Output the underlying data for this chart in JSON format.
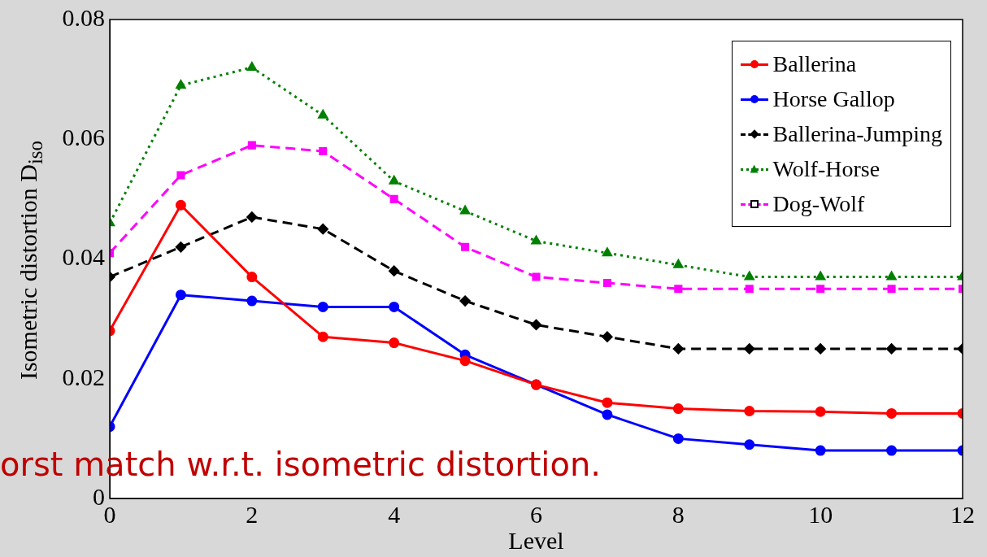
{
  "chart_data": {
    "type": "line",
    "xlabel": "Level",
    "ylabel": "Isometric distortion D$_{iso}$",
    "x": [
      0,
      1,
      2,
      3,
      4,
      5,
      6,
      7,
      8,
      9,
      10,
      11,
      12
    ],
    "xlim": [
      0,
      12
    ],
    "xticks": [
      0,
      2,
      4,
      6,
      8,
      10,
      12
    ],
    "ylim": [
      0,
      0.08
    ],
    "yticks": [
      0,
      0.02,
      0.04,
      0.06,
      0.08
    ],
    "grid": false,
    "legend": "top right",
    "annotations": [
      "orst match w.r.t. isometric distortion."
    ],
    "series": [
      {
        "name": "Ballerina",
        "color": "#ff0000",
        "marker": "circle",
        "line_style": "solid",
        "values": [
          0.028,
          0.049,
          0.037,
          0.027,
          0.026,
          0.023,
          0.019,
          0.016,
          0.015,
          0.0146,
          0.0145,
          0.0142,
          0.0142
        ]
      },
      {
        "name": "Horse Gallop",
        "color": "#0000ff",
        "marker": "circle",
        "line_style": "solid",
        "values": [
          0.012,
          0.034,
          0.033,
          0.032,
          0.032,
          0.024,
          0.019,
          0.014,
          0.01,
          0.009,
          0.008,
          0.008,
          0.008
        ]
      },
      {
        "name": "Ballerina-Jumping",
        "color": "#000000",
        "marker": "diamond",
        "line_style": "dashed",
        "values": [
          0.037,
          0.042,
          0.047,
          0.045,
          0.038,
          0.033,
          0.029,
          0.027,
          0.025,
          0.025,
          0.025,
          0.025,
          0.025
        ]
      },
      {
        "name": "Wolf-Horse",
        "color": "#008000",
        "marker": "triangle",
        "line_style": "dotted",
        "values": [
          0.046,
          0.069,
          0.072,
          0.064,
          0.053,
          0.048,
          0.043,
          0.041,
          0.039,
          0.037,
          0.037,
          0.037,
          0.037
        ]
      },
      {
        "name": "Dog-Wolf",
        "color": "#ff00ff",
        "marker": "square",
        "line_style": "dashed",
        "values": [
          0.041,
          0.054,
          0.059,
          0.058,
          0.05,
          0.042,
          0.037,
          0.036,
          0.035,
          0.035,
          0.035,
          0.035,
          0.035
        ]
      }
    ]
  }
}
